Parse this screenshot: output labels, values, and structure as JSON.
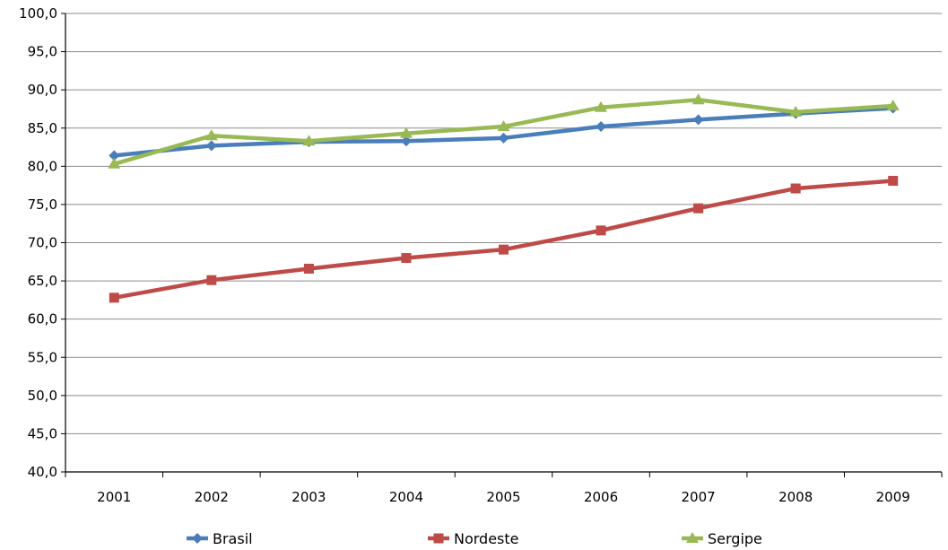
{
  "chart_data": {
    "type": "line",
    "categories": [
      "2001",
      "2002",
      "2003",
      "2004",
      "2005",
      "2006",
      "2007",
      "2008",
      "2009"
    ],
    "ylim": [
      40,
      100
    ],
    "ytick_step": 5,
    "ytick_labels": [
      "40,0",
      "45,0",
      "50,0",
      "55,0",
      "60,0",
      "65,0",
      "70,0",
      "75,0",
      "80,0",
      "85,0",
      "90,0",
      "95,0",
      "100,0"
    ],
    "grid": true,
    "legend_position": "bottom",
    "title": "",
    "xlabel": "",
    "ylabel": "",
    "series": [
      {
        "name": "Brasil",
        "color": "#4a7ebb",
        "marker": "diamond",
        "values": [
          81.4,
          82.7,
          83.2,
          83.3,
          83.7,
          85.2,
          86.1,
          86.9,
          87.6
        ]
      },
      {
        "name": "Nordeste",
        "color": "#be4b48",
        "marker": "square",
        "values": [
          62.8,
          65.1,
          66.6,
          68.0,
          69.1,
          71.6,
          74.5,
          77.1,
          78.1
        ]
      },
      {
        "name": "Sergipe",
        "color": "#98b954",
        "marker": "triangle",
        "values": [
          80.3,
          84.0,
          83.3,
          84.3,
          85.2,
          87.7,
          88.7,
          87.1,
          87.9
        ]
      }
    ]
  }
}
